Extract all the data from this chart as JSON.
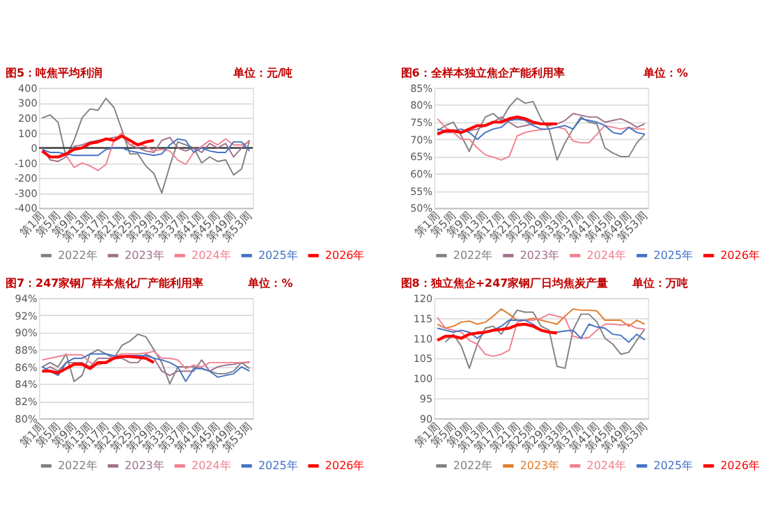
{
  "chart_data": [
    {
      "type": "line",
      "title": "图5：吨焦平均利润",
      "subtitle": "单位：元/吨",
      "categories": [
        "第1周",
        null,
        "第5周",
        null,
        "第9周",
        null,
        "第13周",
        null,
        "第17周",
        null,
        "第21周",
        null,
        "第25周",
        null,
        "第29周",
        null,
        "第33周",
        null,
        "第37周",
        null,
        "第41周",
        null,
        "第45周",
        null,
        "第49周",
        null,
        "第53周"
      ],
      "series": [
        {
          "name": "2022年",
          "color": "#808080",
          "values": [
            200,
            220,
            170,
            -60,
            50,
            200,
            260,
            250,
            330,
            270,
            120,
            -40,
            -40,
            -120,
            -170,
            -300,
            -120,
            40,
            20,
            0,
            -100,
            -60,
            -90,
            -80,
            -180,
            -140,
            50
          ]
        },
        {
          "name": "2023年",
          "color": "#a0708c",
          "values": [
            0,
            -80,
            -90,
            -60,
            10,
            20,
            40,
            50,
            60,
            70,
            80,
            20,
            0,
            -20,
            -30,
            50,
            70,
            0,
            -20,
            0,
            -30,
            30,
            0,
            30,
            -60,
            0,
            50
          ]
        },
        {
          "name": "2024年",
          "color": "#f08090",
          "values": [
            -30,
            -60,
            -60,
            -50,
            -130,
            -100,
            -120,
            -150,
            -110,
            50,
            100,
            20,
            30,
            10,
            -20,
            -10,
            -20,
            -80,
            -110,
            -30,
            10,
            50,
            20,
            60,
            20,
            20,
            40
          ]
        },
        {
          "name": "2025年",
          "color": "#4472c4",
          "values": [
            -10,
            -30,
            -30,
            -40,
            -50,
            -50,
            -50,
            -50,
            -10,
            0,
            0,
            -20,
            -30,
            -40,
            -50,
            -40,
            20,
            60,
            50,
            -30,
            0,
            -20,
            -30,
            -30,
            40,
            40,
            -20
          ]
        },
        {
          "name": "2026年",
          "color": "#ff0000",
          "values": [
            -20,
            -60,
            -60,
            -40,
            -10,
            0,
            30,
            40,
            60,
            50,
            80,
            50,
            20,
            40,
            50,
            null,
            null,
            null,
            null,
            null,
            null,
            null,
            null,
            null,
            null,
            null,
            null
          ]
        }
      ],
      "ylim": [
        -400,
        400
      ],
      "yticks": [
        -400,
        -300,
        -200,
        -100,
        0,
        100,
        200,
        300,
        400
      ],
      "ref_lines": [
        {
          "axis": "y",
          "value": 0,
          "color": "#404040"
        }
      ],
      "grid": "y",
      "legend": "bottom",
      "marker": "none"
    },
    {
      "type": "line",
      "title": "图6：全样本独立焦企产能利用率",
      "subtitle": "单位：%",
      "categories": [
        "第1周",
        null,
        "第5周",
        null,
        "第9周",
        null,
        "第13周",
        null,
        "第17周",
        null,
        "第21周",
        null,
        "第25周",
        null,
        "第29周",
        null,
        "第33周",
        null,
        "第37周",
        null,
        "第41周",
        null,
        "第45周",
        null,
        "第49周",
        null,
        "第53周"
      ],
      "series": [
        {
          "name": "2022年",
          "color": "#808080",
          "values": [
            72.5,
            74,
            75,
            71,
            66.5,
            72,
            76.5,
            77.5,
            75.5,
            79.5,
            82,
            80.5,
            81,
            76,
            73,
            64,
            69,
            73,
            76.5,
            75,
            74.5,
            67.5,
            66,
            65,
            65,
            69,
            71.5
          ]
        },
        {
          "name": "2023年",
          "color": "#a0708c",
          "values": [
            72,
            72,
            72,
            72,
            72.5,
            73,
            74,
            75,
            76.5,
            75,
            73.5,
            74,
            74.5,
            74.5,
            74,
            74.5,
            75.5,
            77.5,
            77,
            76.5,
            76.5,
            75,
            75.5,
            76,
            75,
            73.5,
            74.5
          ]
        },
        {
          "name": "2024年",
          "color": "#f08090",
          "values": [
            76,
            73.5,
            72,
            70,
            70,
            67.5,
            65.5,
            64.8,
            64,
            65,
            71,
            72,
            72.5,
            72.8,
            73,
            73.5,
            73,
            69.5,
            69,
            69,
            71.5,
            74,
            73.5,
            73,
            73.5,
            73,
            73
          ]
        },
        {
          "name": "2025年",
          "color": "#4472c4",
          "values": [
            73,
            72.5,
            72.5,
            73,
            72,
            70,
            72,
            73,
            73.5,
            75.5,
            75.8,
            75.5,
            74,
            73,
            73,
            73.5,
            74,
            73,
            76,
            75.5,
            75,
            74,
            72,
            71.5,
            73.5,
            72,
            71.5
          ]
        },
        {
          "name": "2026年",
          "color": "#ff0000",
          "values": [
            71.5,
            72.5,
            72.5,
            72,
            73,
            74,
            74,
            75,
            75,
            76,
            76.5,
            76,
            75,
            74.5,
            74.5,
            74.5,
            null,
            null,
            null,
            null,
            null,
            null,
            null,
            null,
            null,
            null,
            null
          ]
        }
      ],
      "ylim": [
        50,
        85
      ],
      "yticks": [
        {
          "value": 50,
          "label": "50%"
        },
        {
          "value": 55,
          "label": "55%"
        },
        {
          "value": 60,
          "label": "60%"
        },
        {
          "value": 65,
          "label": "65%"
        },
        {
          "value": 70,
          "label": "70%"
        },
        {
          "value": 75,
          "label": "75%"
        },
        {
          "value": 80,
          "label": "80%"
        },
        {
          "value": 85,
          "label": "85%"
        }
      ],
      "grid": "y",
      "legend": "bottom",
      "marker": "none"
    },
    {
      "type": "line",
      "title": "图7：247家钢厂样本焦化厂产能利用率",
      "subtitle": "单位：%",
      "categories": [
        "第1周",
        null,
        "第5周",
        null,
        "第9周",
        null,
        "第13周",
        null,
        "第17周",
        null,
        "第21周",
        null,
        "第25周",
        null,
        "第29周",
        null,
        "第33周",
        null,
        "第37周",
        null,
        "第41周",
        null,
        "第45周",
        null,
        "第49周",
        null,
        "第53周"
      ],
      "series": [
        {
          "name": "2022年",
          "color": "#808080",
          "values": [
            86,
            86.5,
            86,
            87.5,
            84.3,
            85,
            87.5,
            88,
            87.5,
            87,
            88.5,
            89,
            89.8,
            89.5,
            88,
            86.5,
            84,
            86,
            86,
            86,
            85.8,
            85.5,
            85.2,
            85.2,
            85.5,
            86.5,
            85.8
          ]
        },
        {
          "name": "2023年",
          "color": "#a0708c",
          "values": [
            85.5,
            86,
            85.5,
            86.5,
            86.5,
            86.5,
            86,
            87,
            87,
            87,
            87,
            86.5,
            86.5,
            87.5,
            87,
            85.5,
            85,
            85.5,
            85.5,
            85.5,
            86.8,
            85.5,
            86,
            86.2,
            86.3,
            86.5,
            86.5
          ]
        },
        {
          "name": "2024年",
          "color": "#f08090",
          "values": [
            86.8,
            87,
            87.2,
            87.4,
            87.4,
            87.4,
            86.5,
            86.2,
            86.5,
            87.2,
            87.5,
            87.5,
            87.5,
            87.6,
            87.8,
            87,
            87,
            86.8,
            85.8,
            86.2,
            86,
            86.5,
            86.5,
            86.5,
            86.5,
            86.5,
            86.6
          ]
        },
        {
          "name": "2025年",
          "color": "#4472c4",
          "values": [
            86,
            85.5,
            85,
            86.5,
            87,
            87,
            87.5,
            87.5,
            87.5,
            87.3,
            87.2,
            87.3,
            87.3,
            87.3,
            87,
            86.8,
            86.5,
            86,
            84.3,
            85.8,
            85.8,
            85.5,
            84.8,
            85,
            85.2,
            86,
            85.5
          ]
        },
        {
          "name": "2026年",
          "color": "#ff0000",
          "values": [
            85.5,
            85.5,
            85.3,
            85.8,
            86.3,
            86.3,
            85.8,
            86.5,
            86.5,
            87,
            87.2,
            87.2,
            87.1,
            87,
            86.5,
            null,
            null,
            null,
            null,
            null,
            null,
            null,
            null,
            null,
            null,
            null,
            null
          ]
        }
      ],
      "ylim": [
        80,
        94
      ],
      "yticks": [
        {
          "value": 80,
          "label": "80%"
        },
        {
          "value": 82,
          "label": "82%"
        },
        {
          "value": 84,
          "label": "84%"
        },
        {
          "value": 86,
          "label": "86%"
        },
        {
          "value": 88,
          "label": "88%"
        },
        {
          "value": 90,
          "label": "90%"
        },
        {
          "value": 92,
          "label": "92%"
        },
        {
          "value": 94,
          "label": "94%"
        }
      ],
      "grid": "y",
      "legend": "bottom",
      "marker": "none"
    },
    {
      "type": "line",
      "title": "图8：独立焦企+247家钢厂日均焦炭产量",
      "subtitle": "单位：万吨",
      "categories": [
        "第1周",
        null,
        "第5周",
        null,
        "第9周",
        null,
        "第13周",
        null,
        "第17周",
        null,
        "第21周",
        null,
        "第25周",
        null,
        "第29周",
        null,
        "第33周",
        null,
        "第37周",
        null,
        "第41周",
        null,
        "第45周",
        null,
        "第49周",
        null,
        "第53周"
      ],
      "series": [
        {
          "name": "2022年",
          "color": "#808080",
          "values": [
            null,
            109,
            111,
            108,
            102.5,
            108.5,
            112.5,
            113,
            111,
            114,
            117,
            116.5,
            116.5,
            113,
            112,
            103,
            102.5,
            112,
            116,
            116,
            114,
            110,
            108.5,
            106,
            106.5,
            109.5,
            112.3
          ]
        },
        {
          "name": "2023年",
          "color": "#e07b2a",
          "values": [
            113.5,
            112.5,
            113,
            114,
            114.3,
            113.5,
            114,
            115.5,
            117.3,
            116,
            114.5,
            114.5,
            115,
            114.5,
            114,
            113.5,
            115.5,
            117.3,
            117,
            117,
            116.8,
            114.5,
            114.5,
            114.5,
            113,
            114.5,
            113.5
          ]
        },
        {
          "name": "2024年",
          "color": "#f08090",
          "values": [
            115.2,
            112.5,
            112,
            111.5,
            109.5,
            108.5,
            106,
            105.5,
            106,
            107,
            114,
            114.5,
            114.5,
            115,
            116,
            115.5,
            115,
            110.5,
            110,
            110.2,
            112,
            113.5,
            113.5,
            113.3,
            113.5,
            112.5,
            112.3
          ]
        },
        {
          "name": "2025年",
          "color": "#4472c4",
          "values": [
            112.5,
            112,
            111.5,
            112,
            111.5,
            110,
            111.5,
            112,
            113,
            114.5,
            114.5,
            114.5,
            113.5,
            112,
            111.5,
            111.5,
            111.8,
            112,
            110,
            113.5,
            112.8,
            112.5,
            111,
            110.7,
            109,
            111,
            109.6
          ]
        },
        {
          "name": "2026年",
          "color": "#ff0000",
          "values": [
            109.5,
            110.5,
            110.5,
            110,
            111,
            111.3,
            111.5,
            112,
            112.2,
            112.5,
            113.3,
            113.5,
            113,
            112,
            111.5,
            111.3,
            null,
            null,
            null,
            null,
            null,
            null,
            null,
            null,
            null,
            null,
            null
          ]
        }
      ],
      "ylim": [
        90,
        120
      ],
      "yticks": [
        90,
        95,
        100,
        105,
        110,
        115,
        120
      ],
      "grid": "y",
      "legend": "bottom",
      "marker": "none"
    }
  ]
}
